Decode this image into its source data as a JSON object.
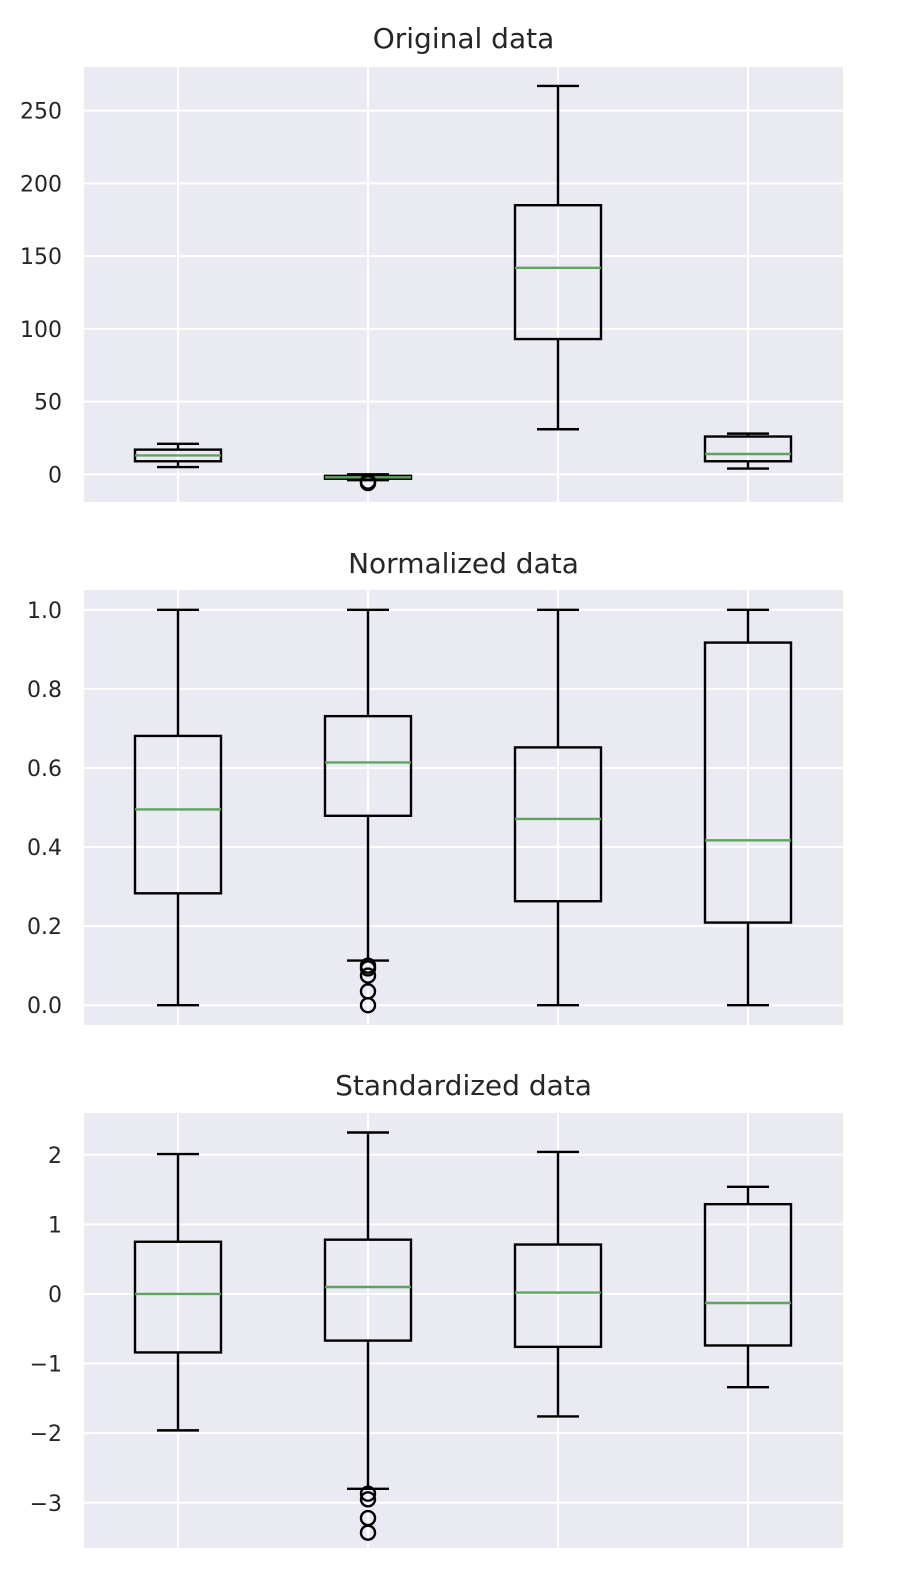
{
  "chart_data": [
    {
      "type": "box",
      "title": "Original data",
      "xlabel": "",
      "ylabel": "",
      "ylim": [
        -19,
        280
      ],
      "yticks": [
        0,
        50,
        100,
        150,
        200,
        250
      ],
      "ytick_labels": [
        "0",
        "50",
        "100",
        "150",
        "200",
        "250"
      ],
      "grid": true,
      "boxes": [
        {
          "whisker_low": 5,
          "q1": 9,
          "median": 13,
          "q3": 17,
          "whisker_high": 21,
          "fliers": []
        },
        {
          "whisker_low": -4,
          "q1": -3,
          "median": -2,
          "q3": -1,
          "whisker_high": 0,
          "fliers": [
            -5,
            -6
          ]
        },
        {
          "whisker_low": 31,
          "q1": 93,
          "median": 142,
          "q3": 185,
          "whisker_high": 267,
          "fliers": []
        },
        {
          "whisker_low": 4,
          "q1": 9,
          "median": 14,
          "q3": 26,
          "whisker_high": 28,
          "fliers": []
        }
      ]
    },
    {
      "type": "box",
      "title": "Normalized data",
      "xlabel": "",
      "ylabel": "",
      "ylim": [
        -0.05,
        1.05
      ],
      "yticks": [
        0.0,
        0.2,
        0.4,
        0.6,
        0.8,
        1.0
      ],
      "ytick_labels": [
        "0.0",
        "0.2",
        "0.4",
        "0.6",
        "0.8",
        "1.0"
      ],
      "grid": true,
      "boxes": [
        {
          "whisker_low": 0.0,
          "q1": 0.283,
          "median": 0.495,
          "q3": 0.681,
          "whisker_high": 1.0,
          "fliers": []
        },
        {
          "whisker_low": 0.113,
          "q1": 0.479,
          "median": 0.614,
          "q3": 0.731,
          "whisker_high": 1.0,
          "fliers": [
            0.1,
            0.093,
            0.075,
            0.035,
            0.0
          ]
        },
        {
          "whisker_low": 0.0,
          "q1": 0.263,
          "median": 0.471,
          "q3": 0.652,
          "whisker_high": 1.0,
          "fliers": []
        },
        {
          "whisker_low": 0.0,
          "q1": 0.209,
          "median": 0.417,
          "q3": 0.917,
          "whisker_high": 1.0,
          "fliers": []
        }
      ]
    },
    {
      "type": "box",
      "title": "Standardized data",
      "xlabel": "",
      "ylabel": "",
      "ylim": [
        -3.65,
        2.6
      ],
      "yticks": [
        -3,
        -2,
        -1,
        0,
        1,
        2
      ],
      "ytick_labels": [
        "−3",
        "−2",
        "−1",
        "0",
        "1",
        "2"
      ],
      "grid": true,
      "boxes": [
        {
          "whisker_low": -1.96,
          "q1": -0.84,
          "median": 0.0,
          "q3": 0.75,
          "whisker_high": 2.01,
          "fliers": []
        },
        {
          "whisker_low": -2.8,
          "q1": -0.67,
          "median": 0.1,
          "q3": 0.78,
          "whisker_high": 2.32,
          "fliers": [
            -2.87,
            -2.95,
            -3.22,
            -3.43
          ]
        },
        {
          "whisker_low": -1.76,
          "q1": -0.76,
          "median": 0.02,
          "q3": 0.71,
          "whisker_high": 2.04,
          "fliers": []
        },
        {
          "whisker_low": -1.34,
          "q1": -0.74,
          "median": -0.13,
          "q3": 1.29,
          "whisker_high": 1.54,
          "fliers": []
        }
      ]
    }
  ]
}
